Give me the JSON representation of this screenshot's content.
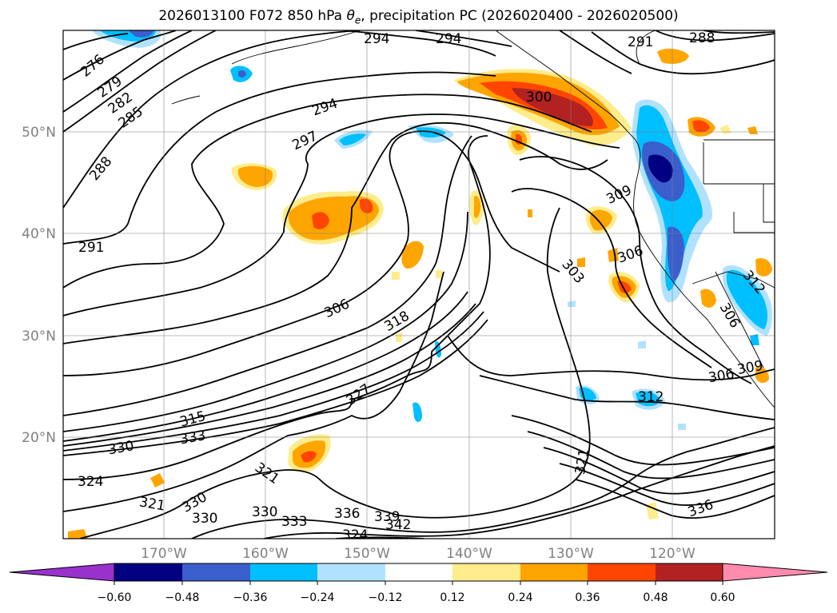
{
  "title_main": "2026013100 F072 850 hPa ",
  "title_symbol": "θ",
  "title_sub": "e",
  "title_rest": ", precipitation PC (2026020400 - 2026020500)",
  "lon_labels": [
    "170°W",
    "160°W",
    "150°W",
    "140°W",
    "130°W",
    "120°W"
  ],
  "lat_labels": [
    "50°N",
    "40°N",
    "30°N",
    "20°N"
  ],
  "contour_labels": [
    "276",
    "279",
    "282",
    "285",
    "288",
    "291",
    "294",
    "294",
    "291",
    "288",
    "294",
    "297",
    "300",
    "309",
    "306",
    "303",
    "306",
    "318",
    "312",
    "306",
    "309",
    "306",
    "312",
    "315",
    "327",
    "330",
    "333",
    "324",
    "321",
    "321",
    "330",
    "330",
    "330",
    "333",
    "336",
    "339",
    "342",
    "324",
    "321",
    "336"
  ],
  "colorbar": {
    "tick_labels": [
      "−0.60",
      "−0.48",
      "−0.36",
      "−0.24",
      "−0.12",
      "0.12",
      "0.24",
      "0.36",
      "0.48",
      "0.60"
    ],
    "colors": [
      "#9932CC",
      "#000080",
      "#3A5FCD",
      "#00BFFF",
      "#B0E2FF",
      "#FFFFFF",
      "#FFEC8B",
      "#FFA500",
      "#FF4500",
      "#B22222",
      "#FF8BAE"
    ]
  },
  "map_data": {
    "projection": "cylindrical",
    "lon_range": [
      -180,
      -110
    ],
    "lat_range": [
      10,
      60
    ],
    "field_contour": "850 hPa theta-e",
    "field_shaded": "precipitation PC"
  }
}
